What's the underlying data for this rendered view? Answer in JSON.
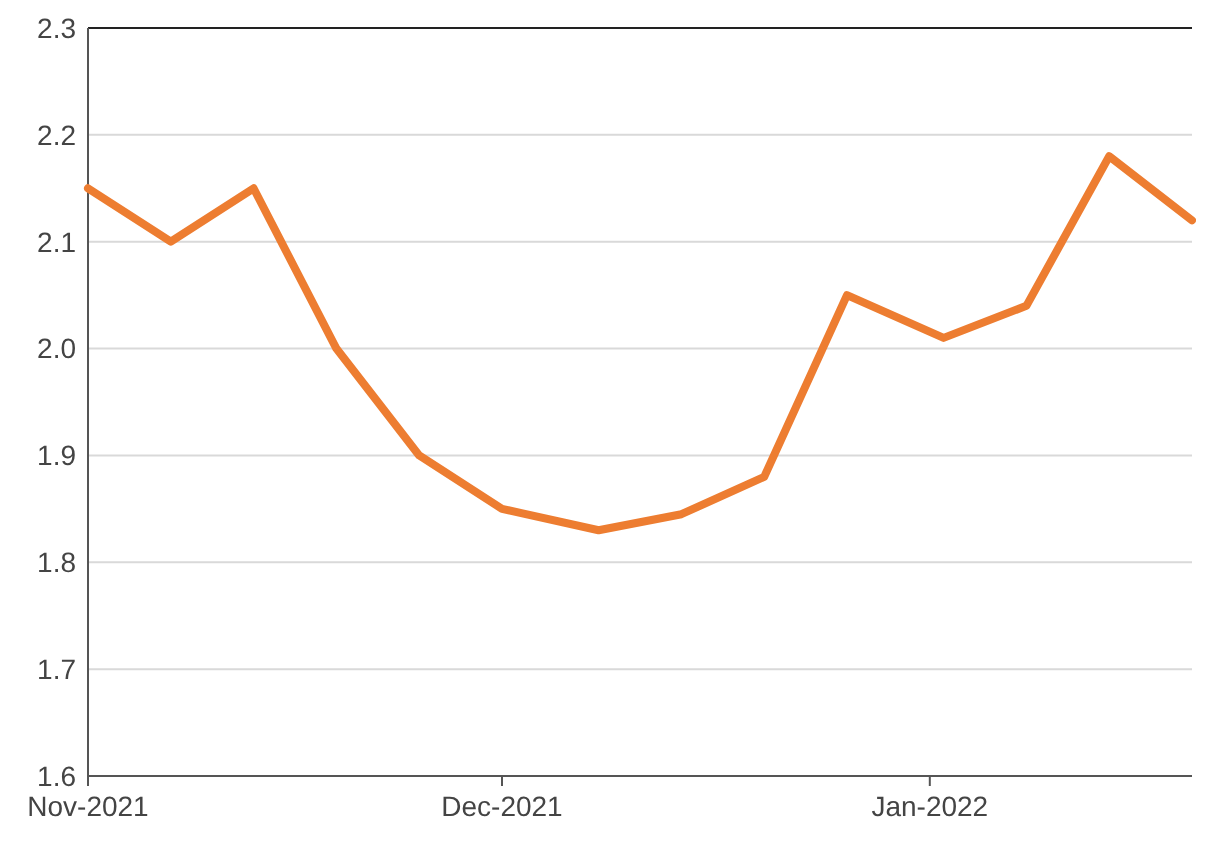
{
  "chart_data": {
    "type": "line",
    "x": [
      "2021-11-01",
      "2021-11-07",
      "2021-11-13",
      "2021-11-19",
      "2021-11-25",
      "2021-12-01",
      "2021-12-08",
      "2021-12-14",
      "2021-12-20",
      "2021-12-26",
      "2022-01-02",
      "2022-01-08",
      "2022-01-14",
      "2022-01-20"
    ],
    "series": [
      {
        "color": "#ed7d31",
        "values": [
          2.15,
          2.1,
          2.15,
          2.0,
          1.9,
          1.85,
          1.83,
          1.845,
          1.88,
          2.05,
          2.01,
          2.04,
          2.18,
          2.12
        ]
      }
    ],
    "xlim": [
      "2021-11-01",
      "2022-01-20"
    ],
    "xticks": [
      {
        "value": "2021-11-01",
        "label": "Nov-2021"
      },
      {
        "value": "2021-12-01",
        "label": "Dec-2021"
      },
      {
        "value": "2022-01-01",
        "label": "Jan-2022"
      }
    ],
    "ylim": [
      1.6,
      2.3
    ],
    "yticks": [
      1.6,
      1.7,
      1.8,
      1.9,
      {
        "value": 2,
        "label": "2.0"
      },
      2.1,
      2.2,
      2.3
    ],
    "grid": "y",
    "marker": "none",
    "line_style": "solid"
  }
}
